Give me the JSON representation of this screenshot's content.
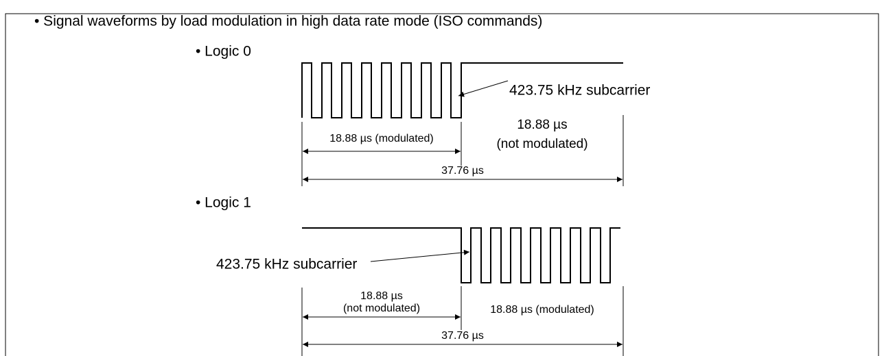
{
  "heading": "• Signal waveforms by load modulation in high data rate mode (ISO commands)",
  "logic0": {
    "label": "• Logic 0",
    "subcarrier": "423.75 kHz subcarrier",
    "modulated": "18.88 µs (modulated)",
    "unmodulated_time": "18.88 µs",
    "unmodulated": "(not modulated)",
    "total": "37.76 µs"
  },
  "logic1": {
    "label": "• Logic 1",
    "subcarrier": "423.75 kHz subcarrier",
    "modulated": "18.88 µs (modulated)",
    "unmodulated_time": "18.88 µs",
    "unmodulated": "(not modulated)",
    "total": "37.76 µs"
  }
}
